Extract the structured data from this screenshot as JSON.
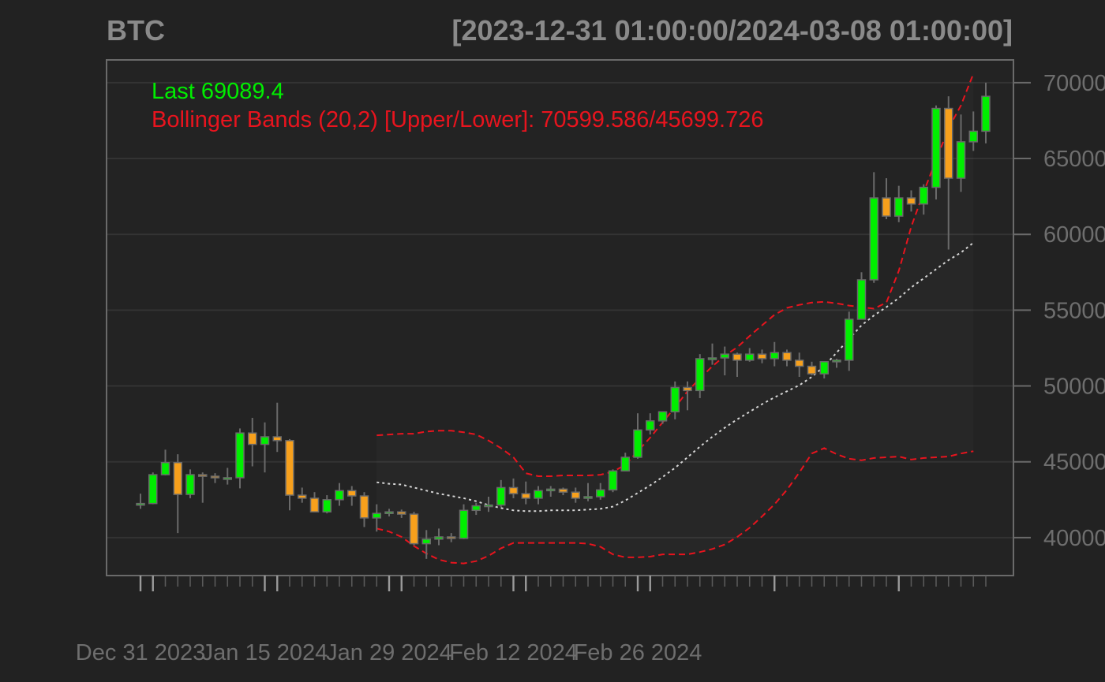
{
  "header": {
    "symbol": "BTC",
    "date_range": "[2023-12-31 01:00:00/2024-03-08 01:00:00]"
  },
  "legend": {
    "last_label": "Last 69089.4",
    "bb_label": "Bollinger Bands (20,2) [Upper/Lower]: 70599.586/45699.726"
  },
  "colors": {
    "background": "#222222",
    "panel": "#232323",
    "up": "#00ee00",
    "down": "#f7a01c",
    "band": "#e8141e",
    "mavg": "#d6d6d6",
    "text": "#8a8a8a",
    "grid": "#333333"
  },
  "chart_data": {
    "type": "candlestick",
    "title": "BTC",
    "subtitle": "[2023-12-31 01:00:00/2024-03-08 01:00:00]",
    "ylim": [
      37500,
      71500
    ],
    "yticks": [
      40000,
      45000,
      50000,
      55000,
      60000,
      65000,
      70000
    ],
    "ytick_labels": [
      "40000",
      "45000",
      "50000",
      "55000",
      "60000",
      "65000",
      "70000"
    ],
    "xtick_labels": [
      "Dec 31 2023",
      "Jan 15 2024",
      "Jan 29 2024",
      "Feb 12 2024",
      "Feb 26 2024"
    ],
    "xtick_label_index": [
      0,
      10,
      20,
      30,
      40
    ],
    "major_tick_index": [
      0,
      1,
      11,
      21,
      31,
      41,
      51,
      61,
      71,
      81,
      91,
      98
    ],
    "dates": [
      "2023-12-31",
      "2024-01-01",
      "2024-01-02",
      "2024-01-03",
      "2024-01-04",
      "2024-01-05",
      "2024-01-06",
      "2024-01-07",
      "2024-01-08",
      "2024-01-09",
      "2024-01-10",
      "2024-01-11",
      "2024-01-12",
      "2024-01-13",
      "2024-01-14",
      "2024-01-15",
      "2024-01-16",
      "2024-01-17",
      "2024-01-18",
      "2024-01-19",
      "2024-01-20",
      "2024-01-21",
      "2024-01-22",
      "2024-01-23",
      "2024-01-24",
      "2024-01-25",
      "2024-01-26",
      "2024-01-27",
      "2024-01-28",
      "2024-01-29",
      "2024-01-30",
      "2024-01-31",
      "2024-02-01",
      "2024-02-02",
      "2024-02-03",
      "2024-02-04",
      "2024-02-05",
      "2024-02-06",
      "2024-02-07",
      "2024-02-08",
      "2024-02-09",
      "2024-02-10",
      "2024-02-11",
      "2024-02-12",
      "2024-02-13",
      "2024-02-14",
      "2024-02-15",
      "2024-02-16",
      "2024-02-17",
      "2024-02-18",
      "2024-02-19",
      "2024-02-20",
      "2024-02-21",
      "2024-02-22",
      "2024-02-23",
      "2024-02-24",
      "2024-02-25",
      "2024-02-26",
      "2024-02-27",
      "2024-02-28",
      "2024-02-29",
      "2024-03-01",
      "2024-03-02",
      "2024-03-03",
      "2024-03-04",
      "2024-03-05",
      "2024-03-06",
      "2024-03-07",
      "2024-03-08"
    ],
    "ohlc": [
      [
        42150,
        42900,
        41900,
        42250
      ],
      [
        42250,
        44300,
        42200,
        44150
      ],
      [
        44150,
        45800,
        44100,
        44950
      ],
      [
        44950,
        45500,
        40300,
        42850
      ],
      [
        42850,
        44500,
        42600,
        44150
      ],
      [
        44150,
        44300,
        42300,
        44050
      ],
      [
        44050,
        44250,
        43600,
        43950
      ],
      [
        43950,
        44600,
        43500,
        43950
      ],
      [
        43950,
        47200,
        43250,
        46900
      ],
      [
        46900,
        47900,
        44700,
        46150
      ],
      [
        46150,
        47600,
        44300,
        46650
      ],
      [
        46650,
        48900,
        45650,
        46400
      ],
      [
        46400,
        46500,
        41800,
        42800
      ],
      [
        42800,
        43300,
        42300,
        42600
      ],
      [
        42600,
        43000,
        41700,
        41700
      ],
      [
        41700,
        42800,
        41600,
        42500
      ],
      [
        42500,
        43600,
        42100,
        43100
      ],
      [
        43100,
        43400,
        42100,
        42750
      ],
      [
        42750,
        43000,
        40700,
        41300
      ],
      [
        41300,
        42200,
        40400,
        41600
      ],
      [
        41600,
        41900,
        41400,
        41700
      ],
      [
        41700,
        41850,
        41300,
        41550
      ],
      [
        41550,
        41700,
        39500,
        39600
      ],
      [
        39600,
        40500,
        38600,
        39900
      ],
      [
        39900,
        40600,
        39500,
        40050
      ],
      [
        40050,
        40300,
        39700,
        39950
      ],
      [
        39950,
        42200,
        39900,
        41800
      ],
      [
        41800,
        42300,
        41500,
        42100
      ],
      [
        42100,
        42700,
        41700,
        42150
      ],
      [
        42150,
        43800,
        42000,
        43300
      ],
      [
        43300,
        43900,
        42600,
        42900
      ],
      [
        42900,
        43700,
        42200,
        42600
      ],
      [
        42600,
        43400,
        42200,
        43100
      ],
      [
        43100,
        43400,
        42700,
        43200
      ],
      [
        43200,
        43300,
        42800,
        43000
      ],
      [
        43000,
        43300,
        42300,
        42600
      ],
      [
        42600,
        43600,
        42400,
        42700
      ],
      [
        42700,
        43600,
        42500,
        43150
      ],
      [
        43150,
        44500,
        43000,
        44400
      ],
      [
        44400,
        45600,
        44400,
        45300
      ],
      [
        45300,
        48200,
        45200,
        47100
      ],
      [
        47100,
        48200,
        46800,
        47700
      ],
      [
        47700,
        48300,
        47500,
        48300
      ],
      [
        48300,
        50300,
        47800,
        49900
      ],
      [
        49900,
        50300,
        48400,
        49700
      ],
      [
        49700,
        52100,
        49200,
        51800
      ],
      [
        51800,
        52800,
        51400,
        51850
      ],
      [
        51850,
        52600,
        50700,
        52100
      ],
      [
        52100,
        52200,
        50600,
        51700
      ],
      [
        51700,
        52500,
        51600,
        52100
      ],
      [
        52100,
        52400,
        51500,
        51800
      ],
      [
        51800,
        52900,
        51300,
        52200
      ],
      [
        52200,
        52400,
        51300,
        51700
      ],
      [
        51700,
        52200,
        50600,
        51300
      ],
      [
        51300,
        51600,
        50700,
        50800
      ],
      [
        50800,
        51400,
        50500,
        51600
      ],
      [
        51600,
        51800,
        51200,
        51700
      ],
      [
        51700,
        54900,
        51000,
        54400
      ],
      [
        54400,
        57500,
        54400,
        57000
      ],
      [
        57000,
        64100,
        56800,
        62400
      ],
      [
        62400,
        63700,
        61000,
        61200
      ],
      [
        61200,
        63200,
        60800,
        62400
      ],
      [
        62400,
        62900,
        61500,
        62000
      ],
      [
        62000,
        63300,
        61300,
        63100
      ],
      [
        63100,
        68500,
        62300,
        68300
      ],
      [
        68300,
        69100,
        59000,
        63700
      ],
      [
        63700,
        67900,
        62800,
        66100
      ],
      [
        66100,
        68100,
        65500,
        66800
      ],
      [
        66800,
        70000,
        66000,
        69100
      ]
    ],
    "bb_start_index": 19,
    "bb_upper": [
      46750,
      46800,
      46850,
      46850,
      47000,
      47050,
      47050,
      46950,
      46800,
      46400,
      45900,
      45300,
      44250,
      44050,
      44050,
      44100,
      44100,
      44100,
      44150,
      44350,
      44800,
      45700,
      46600,
      47600,
      48600,
      49650,
      50500,
      51300,
      52000,
      52550,
      53300,
      54000,
      54700,
      55150,
      55350,
      55500,
      55550,
      55450,
      55300,
      55200,
      55100,
      55500,
      57600,
      60500,
      62800,
      64900,
      67000,
      68500,
      70600
    ],
    "bb_mavg": [
      43650,
      43550,
      43500,
      43300,
      43100,
      42900,
      42750,
      42600,
      42400,
      42150,
      41950,
      41800,
      41750,
      41750,
      41800,
      41800,
      41800,
      41850,
      41900,
      42050,
      42450,
      42950,
      43450,
      44000,
      44600,
      45300,
      46000,
      46650,
      47250,
      47800,
      48300,
      48800,
      49250,
      49650,
      50050,
      50600,
      51300,
      52200,
      53100,
      54000,
      54650,
      55200,
      55800,
      56500,
      57100,
      57700,
      58300,
      58800,
      59450
    ],
    "bb_lower": [
      40600,
      40400,
      40050,
      39450,
      38950,
      38550,
      38350,
      38300,
      38450,
      38800,
      39300,
      39650,
      39650,
      39650,
      39650,
      39650,
      39650,
      39600,
      39400,
      38900,
      38700,
      38700,
      38750,
      38900,
      38900,
      38900,
      39050,
      39250,
      39550,
      40050,
      40650,
      41400,
      42200,
      43150,
      44300,
      45550,
      45900,
      45500,
      45200,
      45100,
      45250,
      45300,
      45350,
      45150,
      45250,
      45300,
      45350,
      45550,
      45700
    ]
  }
}
